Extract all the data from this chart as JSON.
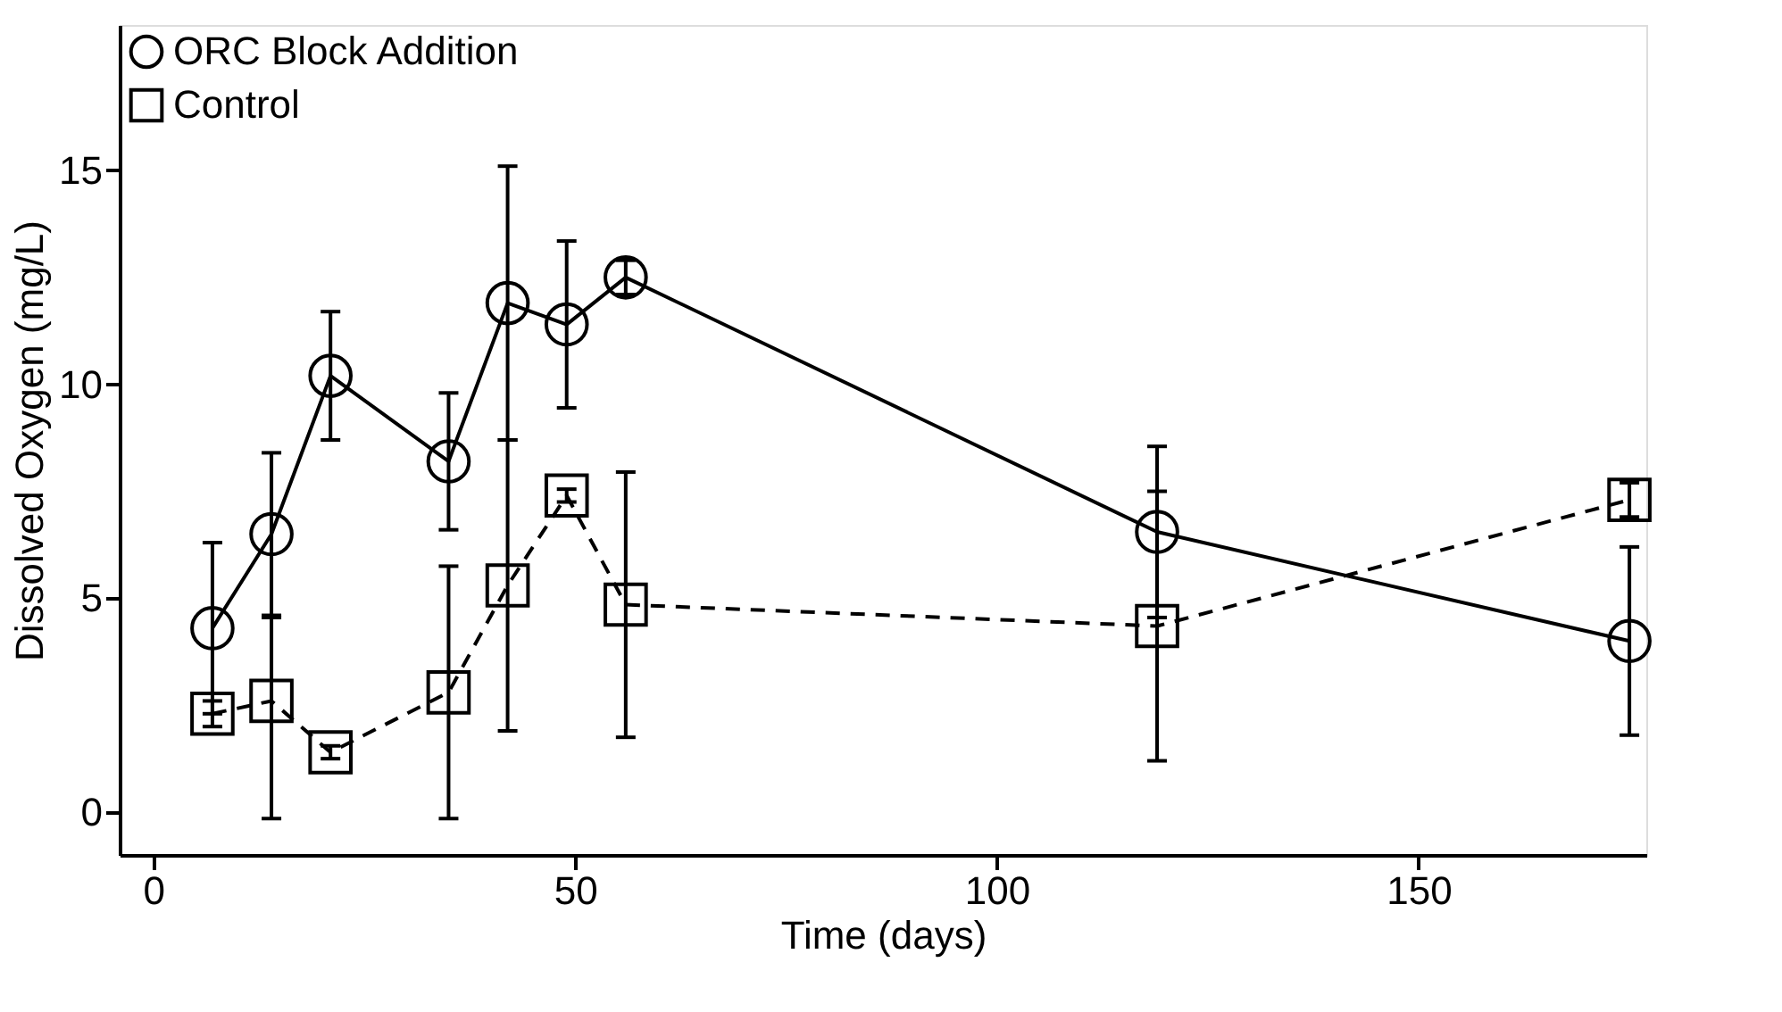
{
  "chart_data": {
    "type": "line",
    "xlabel": "Time (days)",
    "ylabel": "Dissolved Oxygen (mg/L)",
    "xlim": [
      -4,
      177
    ],
    "ylim": [
      -1,
      18.4
    ],
    "xticks": [
      0,
      50,
      100,
      150
    ],
    "yticks": [
      0,
      5,
      10,
      15
    ],
    "grid": false,
    "legend": "top left",
    "series": [
      {
        "name": "ORC Block Addition",
        "color": "#000000",
        "marker": "circle",
        "line_style": "solid",
        "x": [
          7,
          14,
          21,
          35,
          42,
          49,
          56,
          119,
          175
        ],
        "values": [
          4.3,
          6.5,
          10.2,
          8.2,
          11.9,
          11.4,
          12.5,
          6.55,
          4.0
        ],
        "errors": [
          2.0,
          1.9,
          1.5,
          1.6,
          3.2,
          1.95,
          0.4,
          2.0,
          2.2
        ]
      },
      {
        "name": "Control",
        "color": "#000000",
        "marker": "square",
        "line_style": "dashed",
        "x": [
          7,
          14,
          21,
          35,
          42,
          49,
          56,
          119,
          175
        ],
        "values": [
          2.3,
          2.6,
          1.4,
          2.8,
          5.3,
          7.4,
          4.85,
          4.35,
          7.3
        ],
        "errors": [
          0.3,
          [
            -0.15,
            4.55
          ],
          0.15,
          2.95,
          3.4,
          0.15,
          3.1,
          3.15,
          0.4
        ]
      }
    ]
  }
}
